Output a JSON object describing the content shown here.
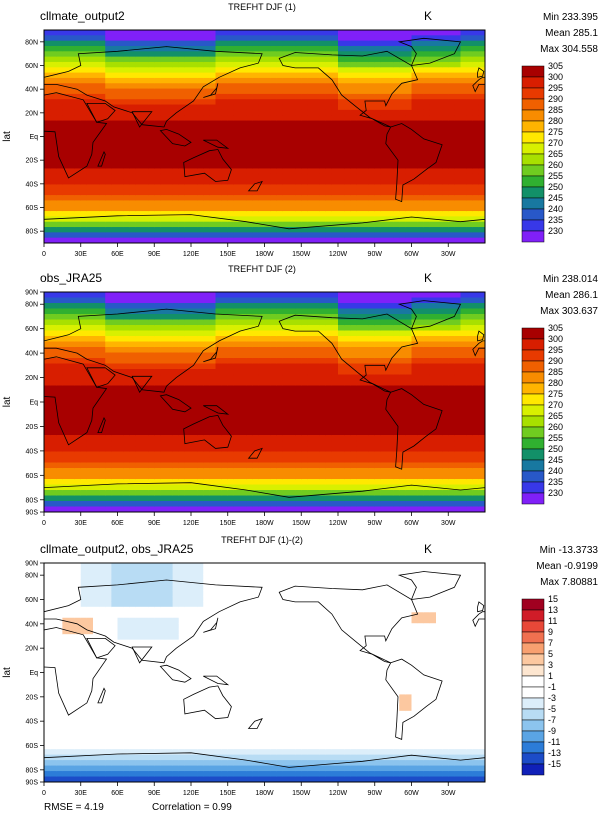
{
  "chart_data": [
    {
      "type": "heatmap",
      "panel_name": "cllmate_output2",
      "title": "TREFHT DJF (1)",
      "units": "K",
      "stats": {
        "min": "Min 233.395",
        "mean": "Mean 285.1",
        "max": "Max 304.558"
      },
      "ylabel": "lat",
      "x_ticks": [
        "0",
        "30E",
        "60E",
        "90E",
        "120E",
        "150E",
        "180W",
        "150W",
        "120W",
        "90W",
        "60W",
        "30W"
      ],
      "y_ticks": [
        "80N",
        "60N",
        "40N",
        "20N",
        "Eq",
        "20S",
        "40S",
        "60S",
        "80S"
      ],
      "y_tick_values": [
        80,
        60,
        40,
        20,
        0,
        -20,
        -40,
        -60,
        -80
      ],
      "xlim": [
        0,
        360
      ],
      "ylim": [
        -90,
        90
      ],
      "colorbar_levels": [
        "305",
        "300",
        "295",
        "290",
        "285",
        "280",
        "275",
        "270",
        "265",
        "260",
        "255",
        "250",
        "245",
        "240",
        "235",
        "230"
      ],
      "colorbar_colors": [
        "#a80000",
        "#d81e00",
        "#e83a00",
        "#f06000",
        "#f88c00",
        "#ffb400",
        "#ffe800",
        "#d8f000",
        "#a8e000",
        "#70cc20",
        "#30b030",
        "#129068",
        "#1878a0",
        "#2858c8",
        "#3838e8",
        "#8020f8"
      ],
      "field": "temperature"
    },
    {
      "type": "heatmap",
      "panel_name": "obs_JRA25",
      "title": "TREFHT DJF (2)",
      "units": "K",
      "stats": {
        "min": "Min 238.014",
        "mean": "Mean 286.1",
        "max": "Max 303.637"
      },
      "ylabel": "lat",
      "x_ticks": [
        "0",
        "30E",
        "60E",
        "90E",
        "120E",
        "150E",
        "180W",
        "150W",
        "120W",
        "90W",
        "60W",
        "30W"
      ],
      "y_ticks": [
        "90N",
        "80N",
        "60N",
        "40N",
        "20N",
        "Eq",
        "20S",
        "40S",
        "60S",
        "80S",
        "90S"
      ],
      "y_tick_values": [
        90,
        80,
        60,
        40,
        20,
        0,
        -20,
        -40,
        -60,
        -80,
        -90
      ],
      "xlim": [
        0,
        360
      ],
      "ylim": [
        -90,
        90
      ],
      "colorbar_levels": [
        "305",
        "300",
        "295",
        "290",
        "285",
        "280",
        "275",
        "270",
        "265",
        "260",
        "255",
        "250",
        "245",
        "240",
        "235",
        "230"
      ],
      "colorbar_colors": [
        "#a80000",
        "#d81e00",
        "#e83a00",
        "#f06000",
        "#f88c00",
        "#ffb400",
        "#ffe800",
        "#d8f000",
        "#a8e000",
        "#70cc20",
        "#30b030",
        "#129068",
        "#1878a0",
        "#2858c8",
        "#3838e8",
        "#8020f8"
      ],
      "field": "temperature"
    },
    {
      "type": "heatmap",
      "panel_name": "cllmate_output2, obs_JRA25",
      "title": "TREFHT DJF (1)-(2)",
      "units": "K",
      "stats": {
        "min": "Min -13.3733",
        "mean": "Mean -0.9199",
        "max": "Max 7.80881"
      },
      "ylabel": "lat",
      "x_ticks": [
        "0",
        "30E",
        "60E",
        "90E",
        "120E",
        "150E",
        "180W",
        "150W",
        "120W",
        "90W",
        "60W",
        "30W"
      ],
      "y_ticks": [
        "90N",
        "80N",
        "60N",
        "40N",
        "20N",
        "Eq",
        "20S",
        "40S",
        "60S",
        "80S",
        "90S"
      ],
      "y_tick_values": [
        90,
        80,
        60,
        40,
        20,
        0,
        -20,
        -40,
        -60,
        -80,
        -90
      ],
      "xlim": [
        0,
        360
      ],
      "ylim": [
        -90,
        90
      ],
      "colorbar_levels": [
        "15",
        "13",
        "11",
        "9",
        "7",
        "5",
        "3",
        "1",
        "-1",
        "-3",
        "-5",
        "-7",
        "-9",
        "-11",
        "-13",
        "-15"
      ],
      "colorbar_colors": [
        "#a00020",
        "#d01c28",
        "#e84838",
        "#f07050",
        "#f8a070",
        "#fcc8a0",
        "#fde6d0",
        "#ffffff",
        "#ffffff",
        "#dceefa",
        "#b8dcf4",
        "#8cc4ee",
        "#5aa4e4",
        "#2c7cd8",
        "#1c4cc8",
        "#1020b8"
      ],
      "field": "difference",
      "footer": {
        "rmse": "RMSE = 4.19",
        "correlation": "Correlation = 0.99"
      }
    }
  ]
}
